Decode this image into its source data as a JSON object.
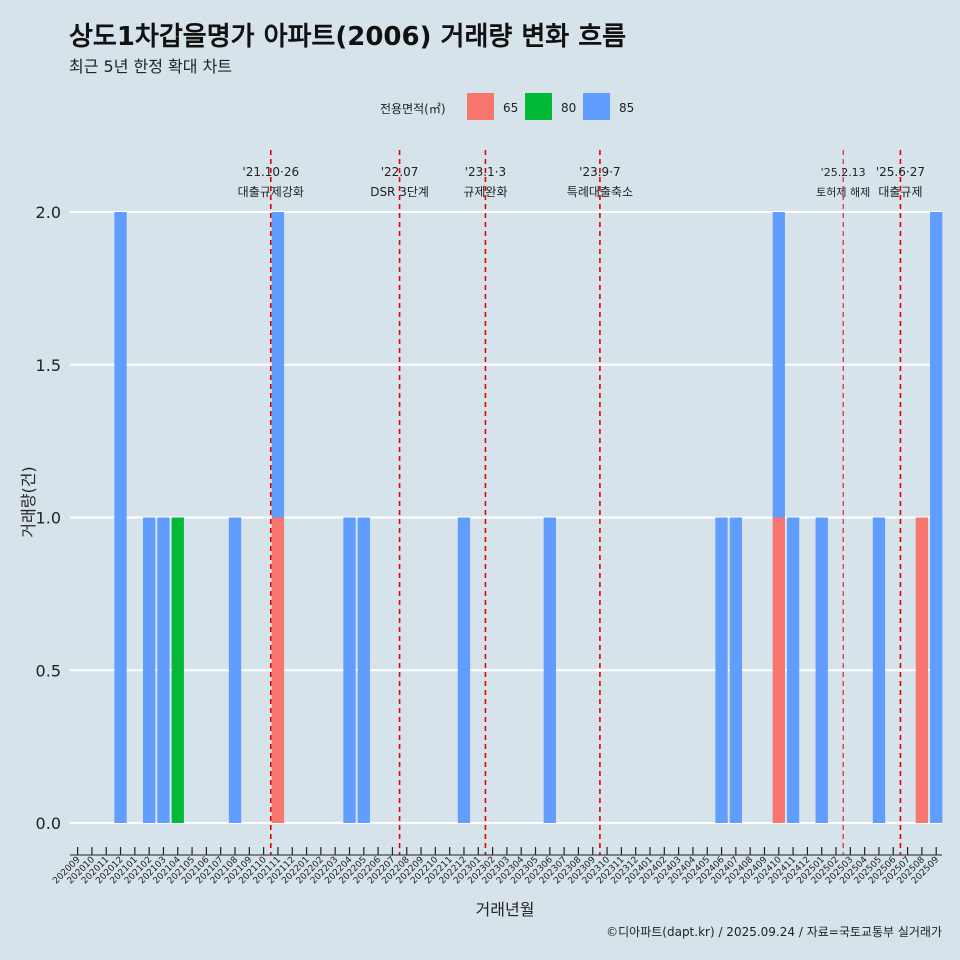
{
  "title": "상도1차갑을명가 아파트(2006) 거래량 변화 흐름",
  "subtitle": "최근 5년 한정 확대 차트",
  "caption": "©디아파트(dapt.kr) / 2025.09.24 / 자료=국토교통부 실거래가",
  "legend": {
    "title": "전용면적(㎡)",
    "items": [
      {
        "label": "65",
        "color": "#f8766d"
      },
      {
        "label": "80",
        "color": "#00ba38"
      },
      {
        "label": "85",
        "color": "#619cff"
      }
    ]
  },
  "chart_data": {
    "type": "bar",
    "xlabel": "거래년월",
    "ylabel": "거래량(건)",
    "ylim": [
      0,
      2
    ],
    "yticks": [
      "0.0",
      "0.5",
      "1.0",
      "1.5",
      "2.0"
    ],
    "categories": [
      "202009",
      "202010",
      "202011",
      "202012",
      "202101",
      "202102",
      "202103",
      "202104",
      "202105",
      "202106",
      "202107",
      "202108",
      "202109",
      "202110",
      "202111",
      "202112",
      "202201",
      "202202",
      "202203",
      "202204",
      "202205",
      "202206",
      "202207",
      "202208",
      "202209",
      "202210",
      "202211",
      "202212",
      "202301",
      "202302",
      "202303",
      "202304",
      "202305",
      "202306",
      "202307",
      "202308",
      "202309",
      "202310",
      "202311",
      "202312",
      "202401",
      "202402",
      "202403",
      "202404",
      "202405",
      "202406",
      "202407",
      "202408",
      "202409",
      "202410",
      "202411",
      "202412",
      "202501",
      "202502",
      "202503",
      "202504",
      "202505",
      "202506",
      "202507",
      "202508",
      "202509"
    ],
    "series": [
      {
        "name": "65",
        "color": "#f8766d",
        "points": [
          {
            "x": "202111",
            "y": 1
          },
          {
            "x": "202410",
            "y": 1
          },
          {
            "x": "202508",
            "y": 1
          }
        ]
      },
      {
        "name": "80",
        "color": "#00ba38",
        "points": [
          {
            "x": "202104",
            "y": 1
          }
        ]
      },
      {
        "name": "85",
        "color": "#619cff",
        "points": [
          {
            "x": "202012",
            "y": 2
          },
          {
            "x": "202102",
            "y": 1
          },
          {
            "x": "202103",
            "y": 1
          },
          {
            "x": "202108",
            "y": 1
          },
          {
            "x": "202111",
            "y": 1
          },
          {
            "x": "202204",
            "y": 1
          },
          {
            "x": "202205",
            "y": 1
          },
          {
            "x": "202212",
            "y": 1
          },
          {
            "x": "202306",
            "y": 1
          },
          {
            "x": "202406",
            "y": 1
          },
          {
            "x": "202407",
            "y": 1
          },
          {
            "x": "202410",
            "y": 1
          },
          {
            "x": "202411",
            "y": 1
          },
          {
            "x": "202501",
            "y": 1
          },
          {
            "x": "202505",
            "y": 1
          },
          {
            "x": "202509",
            "y": 2
          }
        ]
      }
    ],
    "annotations": [
      {
        "x": "202110",
        "date": "'21.10·26",
        "label": "대출규제강화",
        "style": "thick"
      },
      {
        "x": "202207",
        "date": "'22.07",
        "label": "DSR 3단계",
        "style": "thick"
      },
      {
        "x": "202301",
        "date": "'23.1·3",
        "label": "규제완화",
        "style": "thick"
      },
      {
        "x": "202309",
        "date": "'23.9·7",
        "label": "특례대출축소",
        "style": "thick"
      },
      {
        "x": "202502",
        "date": "'25.2.13",
        "label": "토허제 해제",
        "style": "thin"
      },
      {
        "x": "202506",
        "date": "'25.6·27",
        "label": "대출규제",
        "style": "thick"
      }
    ]
  }
}
